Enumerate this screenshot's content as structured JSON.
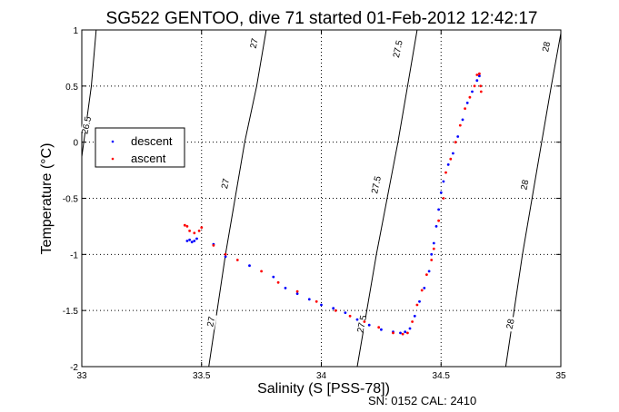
{
  "chart_data": {
    "type": "scatter",
    "title": "SG522 GENTOO, dive 71 started 01-Feb-2012 12:42:17",
    "xlabel": "Salinity (S [PSS-78])",
    "ylabel": "Temperature (°C)",
    "xlim": [
      33,
      35
    ],
    "ylim": [
      -2,
      1
    ],
    "xticks": [
      "33",
      "33.5",
      "34",
      "34.5",
      "35"
    ],
    "yticks": [
      "-2",
      "-1.5",
      "-1",
      "-0.5",
      "0",
      "0.5",
      "1"
    ],
    "xtick_values": [
      33,
      33.5,
      34,
      34.5,
      35
    ],
    "ytick_values": [
      -2,
      -1.5,
      -1,
      -0.5,
      0,
      0.5,
      1
    ],
    "grid": true,
    "legend_position": "upper-left",
    "footer": "SN: 0152  CAL: 2410",
    "colors": {
      "descent": "#0000ff",
      "ascent": "#ff0000",
      "isopycnal": "#000000",
      "grid": "#000000"
    },
    "isopycnals": [
      {
        "label": "26.5",
        "points": [
          [
            33.0,
            -0.13
          ],
          [
            33.04,
            0.5
          ],
          [
            33.06,
            1.0
          ]
        ],
        "label_at": [
          33.02,
          0.15
        ]
      },
      {
        "label": "27",
        "points": [
          [
            33.53,
            -2.0
          ],
          [
            33.6,
            -1.0
          ],
          [
            33.68,
            0.0
          ],
          [
            33.73,
            0.5
          ],
          [
            33.77,
            1.0
          ]
        ],
        "label_at": [
          33.72,
          0.88
        ]
      },
      {
        "label": "27.5",
        "points": [
          [
            34.15,
            -2.0
          ],
          [
            34.23,
            -1.0
          ],
          [
            34.32,
            0.0
          ],
          [
            34.36,
            0.5
          ],
          [
            34.4,
            1.0
          ]
        ],
        "label_at": [
          34.32,
          0.83
        ]
      },
      {
        "label": "28",
        "points": [
          [
            34.77,
            -2.0
          ],
          [
            34.84,
            -1.0
          ],
          [
            34.92,
            0.0
          ],
          [
            34.96,
            0.5
          ],
          [
            35.0,
            0.97
          ]
        ],
        "label_at": [
          34.94,
          0.85
        ]
      }
    ],
    "isopycnal_labels_extra": [
      {
        "label": "27",
        "at": [
          33.6,
          -0.37
        ]
      },
      {
        "label": "27",
        "at": [
          33.54,
          -1.6
        ]
      },
      {
        "label": "27.5",
        "at": [
          34.23,
          -0.38
        ]
      },
      {
        "label": "27.5",
        "at": [
          34.17,
          -1.62
        ]
      },
      {
        "label": "28",
        "at": [
          34.85,
          -0.38
        ]
      },
      {
        "label": "28",
        "at": [
          34.79,
          -1.62
        ]
      }
    ],
    "series": [
      {
        "name": "descent",
        "points": [
          [
            33.44,
            -0.88
          ],
          [
            33.45,
            -0.87
          ],
          [
            33.46,
            -0.89
          ],
          [
            33.47,
            -0.88
          ],
          [
            33.48,
            -0.86
          ],
          [
            33.55,
            -0.91
          ],
          [
            33.6,
            -1.02
          ],
          [
            33.7,
            -1.1
          ],
          [
            33.8,
            -1.2
          ],
          [
            33.85,
            -1.3
          ],
          [
            33.9,
            -1.35
          ],
          [
            33.95,
            -1.4
          ],
          [
            34.0,
            -1.45
          ],
          [
            34.05,
            -1.48
          ],
          [
            34.1,
            -1.52
          ],
          [
            34.15,
            -1.58
          ],
          [
            34.2,
            -1.63
          ],
          [
            34.25,
            -1.67
          ],
          [
            34.3,
            -1.69
          ],
          [
            34.33,
            -1.7
          ],
          [
            34.35,
            -1.69
          ],
          [
            34.37,
            -1.66
          ],
          [
            34.39,
            -1.55
          ],
          [
            34.41,
            -1.42
          ],
          [
            34.43,
            -1.3
          ],
          [
            34.45,
            -1.15
          ],
          [
            34.46,
            -1.0
          ],
          [
            34.47,
            -0.9
          ],
          [
            34.48,
            -0.75
          ],
          [
            34.49,
            -0.6
          ],
          [
            34.5,
            -0.45
          ],
          [
            34.51,
            -0.35
          ],
          [
            34.53,
            -0.2
          ],
          [
            34.55,
            -0.1
          ],
          [
            34.57,
            0.05
          ],
          [
            34.59,
            0.2
          ],
          [
            34.61,
            0.35
          ],
          [
            34.63,
            0.45
          ],
          [
            34.65,
            0.55
          ],
          [
            34.66,
            0.59
          ]
        ]
      },
      {
        "name": "ascent",
        "points": [
          [
            33.43,
            -0.74
          ],
          [
            33.44,
            -0.75
          ],
          [
            33.45,
            -0.79
          ],
          [
            33.47,
            -0.81
          ],
          [
            33.49,
            -0.79
          ],
          [
            33.5,
            -0.76
          ],
          [
            33.55,
            -0.92
          ],
          [
            33.6,
            -1.0
          ],
          [
            33.65,
            -1.05
          ],
          [
            33.75,
            -1.15
          ],
          [
            33.82,
            -1.25
          ],
          [
            33.9,
            -1.33
          ],
          [
            33.98,
            -1.42
          ],
          [
            34.06,
            -1.5
          ],
          [
            34.12,
            -1.55
          ],
          [
            34.18,
            -1.6
          ],
          [
            34.24,
            -1.65
          ],
          [
            34.3,
            -1.7
          ],
          [
            34.34,
            -1.71
          ],
          [
            34.36,
            -1.7
          ],
          [
            34.38,
            -1.6
          ],
          [
            34.4,
            -1.45
          ],
          [
            34.42,
            -1.32
          ],
          [
            34.44,
            -1.18
          ],
          [
            34.46,
            -1.05
          ],
          [
            34.47,
            -0.95
          ],
          [
            34.49,
            -0.7
          ],
          [
            34.51,
            -0.5
          ],
          [
            34.52,
            -0.27
          ],
          [
            34.54,
            -0.15
          ],
          [
            34.56,
            0.0
          ],
          [
            34.58,
            0.15
          ],
          [
            34.6,
            0.3
          ],
          [
            34.62,
            0.4
          ],
          [
            34.64,
            0.5
          ],
          [
            34.65,
            0.6
          ],
          [
            34.66,
            0.61
          ],
          [
            34.665,
            0.5
          ],
          [
            34.667,
            0.45
          ]
        ]
      }
    ]
  }
}
